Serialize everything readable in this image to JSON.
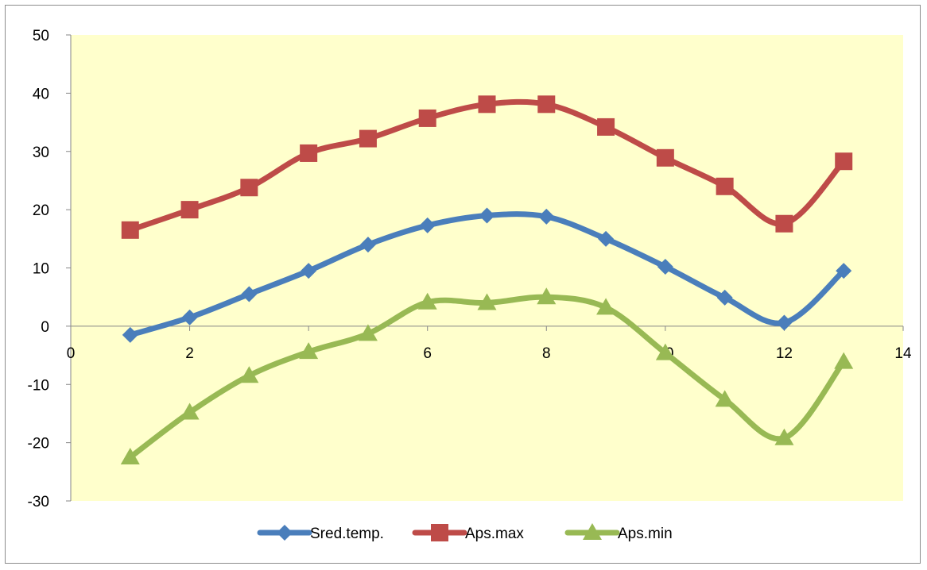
{
  "chart_data": {
    "type": "line",
    "smooth": true,
    "x": [
      1,
      2,
      3,
      4,
      5,
      6,
      7,
      8,
      9,
      10,
      11,
      12,
      13
    ],
    "series": [
      {
        "name": "Sred.temp.",
        "color": "#4A7EBB",
        "marker": "diamond",
        "values": [
          -1.5,
          1.5,
          5.5,
          9.5,
          14.0,
          17.3,
          19.0,
          18.8,
          15.0,
          10.2,
          4.9,
          0.6,
          9.5
        ]
      },
      {
        "name": "Aps.max",
        "color": "#BE4B48",
        "marker": "square",
        "values": [
          16.5,
          20.0,
          23.8,
          29.7,
          32.2,
          35.7,
          38.1,
          38.1,
          34.2,
          28.9,
          24.0,
          17.6,
          28.3
        ]
      },
      {
        "name": "Aps.min",
        "color": "#98B954",
        "marker": "triangle",
        "values": [
          -22.5,
          -14.8,
          -8.5,
          -4.4,
          -1.3,
          4.1,
          4.0,
          5.0,
          3.2,
          -4.6,
          -12.6,
          -19.2,
          -6.1
        ]
      }
    ],
    "xlim": [
      0,
      14
    ],
    "ylim": [
      -30,
      50
    ],
    "xticks": [
      0,
      2,
      4,
      6,
      8,
      10,
      12,
      14
    ],
    "yticks": [
      -30,
      -20,
      -10,
      0,
      10,
      20,
      30,
      40,
      50
    ],
    "plot_background": "#FFFFCC",
    "grid": false,
    "legend_position": "bottom"
  }
}
